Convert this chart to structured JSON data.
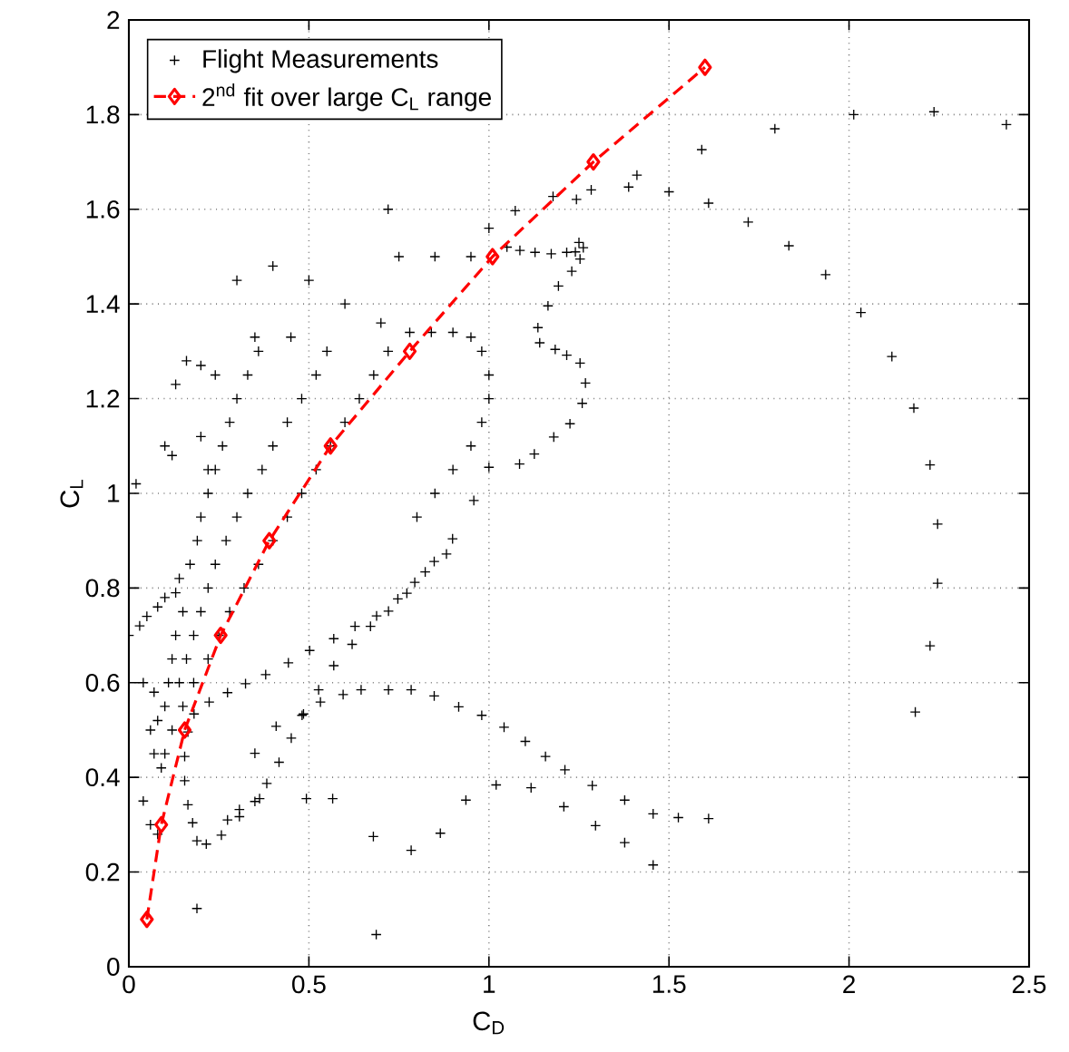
{
  "chart_data": {
    "type": "scatter",
    "xlabel": "C$_{D}$",
    "ylabel": "C$_{L}$",
    "xlim": [
      0,
      2.5
    ],
    "ylim": [
      0,
      2
    ],
    "xticks": [
      0,
      0.5,
      1,
      1.5,
      2,
      2.5
    ],
    "yticks": [
      0,
      0.2,
      0.4,
      0.6,
      0.8,
      1,
      1.2,
      1.4,
      1.6,
      1.8,
      2
    ],
    "grid": true,
    "legend": "top left",
    "series": [
      {
        "name": "Flight Measurements",
        "type": "scatter",
        "color": "#000000",
        "marker": "cross",
        "x": [
          2.013,
          2.236,
          2.437,
          1.794,
          1.591,
          1.411,
          1.388,
          1.5,
          1.61,
          1.72,
          1.833,
          1.935,
          2.033,
          2.119,
          2.18,
          2.225,
          2.246,
          2.246,
          2.225,
          2.184,
          1.526,
          1.61,
          1.085,
          1.126,
          1.18,
          1.225,
          1.259,
          1.268,
          1.253,
          1.216,
          1.184,
          1.141,
          1.136,
          1.164,
          1.193,
          1.23,
          1.253,
          1.262,
          1.216,
          1.173,
          1.128,
          1.086,
          1.284,
          1.243,
          1.178,
          1.073,
          0.687,
          0.189,
          0.679,
          0.784,
          0.865,
          0.936,
          1.02,
          1.117,
          1.208,
          1.296,
          1.377,
          1.456,
          0.566,
          0.493,
          0.363,
          0.307,
          0.274,
          0.35,
          0.409,
          0.481,
          0.532,
          0.595,
          0.645,
          0.721,
          0.784,
          0.848,
          0.916,
          0.98,
          1.042,
          1.101,
          1.157,
          1.211,
          1.287,
          1.377,
          1.456,
          0.899,
          0.848,
          0.794,
          0.747,
          0.688,
          0.628,
          0.569,
          0.502,
          0.443,
          0.38,
          0.324,
          0.274,
          0.223,
          0.181,
          0.164,
          0.155,
          0.155,
          0.164,
          0.177,
          0.189,
          0.215,
          0.257,
          0.307,
          0.35,
          0.383,
          0.417,
          0.451,
          0.485,
          0.527,
          0.569,
          0.62,
          0.671,
          0.721,
          0.772,
          0.823,
          0.882,
          0.958,
          1.0,
          0.03,
          0.05,
          0.08,
          0.1,
          0.13,
          0.06,
          0.08,
          0.07,
          0.09,
          0.1,
          0.11,
          0.12,
          0.13,
          0.15,
          0.14,
          0.17,
          0.19,
          0.2,
          0.22,
          0.24,
          0.26,
          0.28,
          0.3,
          0.33,
          0.36,
          0.14,
          0.16,
          0.18,
          0.2,
          0.22,
          0.24,
          0.27,
          0.3,
          0.33,
          0.37,
          0.4,
          0.44,
          0.48,
          0.52,
          0.55,
          0.1,
          0.12,
          0.15,
          0.18,
          0.22,
          0.25,
          0.28,
          0.32,
          0.36,
          0.4,
          0.44,
          0.48,
          0.52,
          0.56,
          0.6,
          0.64,
          0.68,
          0.72,
          0.78,
          0.84,
          0.9,
          0.95,
          0.98,
          1.0,
          1.0,
          0.98,
          0.95,
          0.9,
          0.85,
          0.8,
          0.1,
          0.12,
          0.16,
          0.2,
          0.24,
          0.13,
          0.22,
          0.2,
          0.02,
          0.0,
          0.04,
          0.06,
          0.08,
          0.07,
          0.04,
          0.3,
          0.4,
          0.5,
          0.6,
          0.7,
          0.75,
          0.85,
          0.95,
          0.35,
          0.45,
          1.05,
          1.0,
          0.72,
          1.24,
          1.25
        ],
        "values": [
          1.8,
          1.806,
          1.779,
          1.77,
          1.726,
          1.672,
          1.647,
          1.637,
          1.613,
          1.573,
          1.523,
          1.462,
          1.382,
          1.289,
          1.18,
          1.06,
          0.935,
          0.81,
          0.678,
          0.538,
          0.315,
          0.313,
          1.062,
          1.083,
          1.119,
          1.147,
          1.19,
          1.233,
          1.275,
          1.292,
          1.304,
          1.318,
          1.35,
          1.396,
          1.438,
          1.469,
          1.495,
          1.519,
          1.509,
          1.506,
          1.509,
          1.513,
          1.641,
          1.621,
          1.627,
          1.597,
          0.068,
          0.123,
          0.275,
          0.246,
          0.282,
          0.352,
          0.384,
          0.378,
          0.338,
          0.298,
          0.262,
          0.215,
          0.355,
          0.355,
          0.355,
          0.332,
          0.31,
          0.451,
          0.508,
          0.531,
          0.559,
          0.575,
          0.585,
          0.585,
          0.585,
          0.572,
          0.549,
          0.531,
          0.506,
          0.476,
          0.444,
          0.416,
          0.383,
          0.352,
          0.323,
          0.904,
          0.856,
          0.812,
          0.777,
          0.741,
          0.719,
          0.693,
          0.668,
          0.642,
          0.617,
          0.598,
          0.579,
          0.559,
          0.534,
          0.496,
          0.444,
          0.393,
          0.342,
          0.304,
          0.266,
          0.259,
          0.278,
          0.317,
          0.349,
          0.387,
          0.432,
          0.483,
          0.534,
          0.585,
          0.636,
          0.681,
          0.719,
          0.751,
          0.789,
          0.834,
          0.872,
          0.985,
          1.055,
          0.72,
          0.74,
          0.76,
          0.78,
          0.79,
          0.5,
          0.52,
          0.45,
          0.42,
          0.55,
          0.6,
          0.65,
          0.7,
          0.75,
          0.82,
          0.85,
          0.9,
          0.95,
          1.0,
          1.05,
          1.1,
          1.15,
          1.2,
          1.25,
          1.3,
          0.6,
          0.65,
          0.7,
          0.75,
          0.8,
          0.85,
          0.9,
          0.95,
          1.0,
          1.05,
          1.1,
          1.15,
          1.2,
          1.25,
          1.3,
          0.45,
          0.5,
          0.55,
          0.6,
          0.65,
          0.7,
          0.75,
          0.8,
          0.85,
          0.9,
          0.95,
          1.0,
          1.05,
          1.1,
          1.15,
          1.2,
          1.25,
          1.3,
          1.34,
          1.34,
          1.34,
          1.33,
          1.3,
          1.25,
          1.2,
          1.15,
          1.1,
          1.05,
          1.0,
          0.95,
          1.1,
          1.08,
          1.28,
          1.27,
          1.25,
          1.23,
          1.05,
          1.12,
          1.02,
          0.7,
          0.35,
          0.3,
          0.28,
          0.58,
          0.6,
          1.45,
          1.48,
          1.45,
          1.4,
          1.36,
          1.5,
          1.5,
          1.5,
          1.33,
          1.33,
          1.52,
          1.56,
          1.6,
          1.51,
          1.53
        ]
      },
      {
        "name": "2$^{nd}$ fit over large C$_{L}$ range",
        "type": "line",
        "color": "#ff0000",
        "marker": "diamond",
        "line_style": "dashed",
        "x": [
          0.05,
          0.09,
          0.155,
          0.255,
          0.39,
          0.56,
          0.78,
          1.01,
          1.29,
          1.6
        ],
        "values": [
          0.1,
          0.3,
          0.5,
          0.7,
          0.9,
          1.1,
          1.3,
          1.5,
          1.7,
          1.9
        ]
      }
    ]
  }
}
